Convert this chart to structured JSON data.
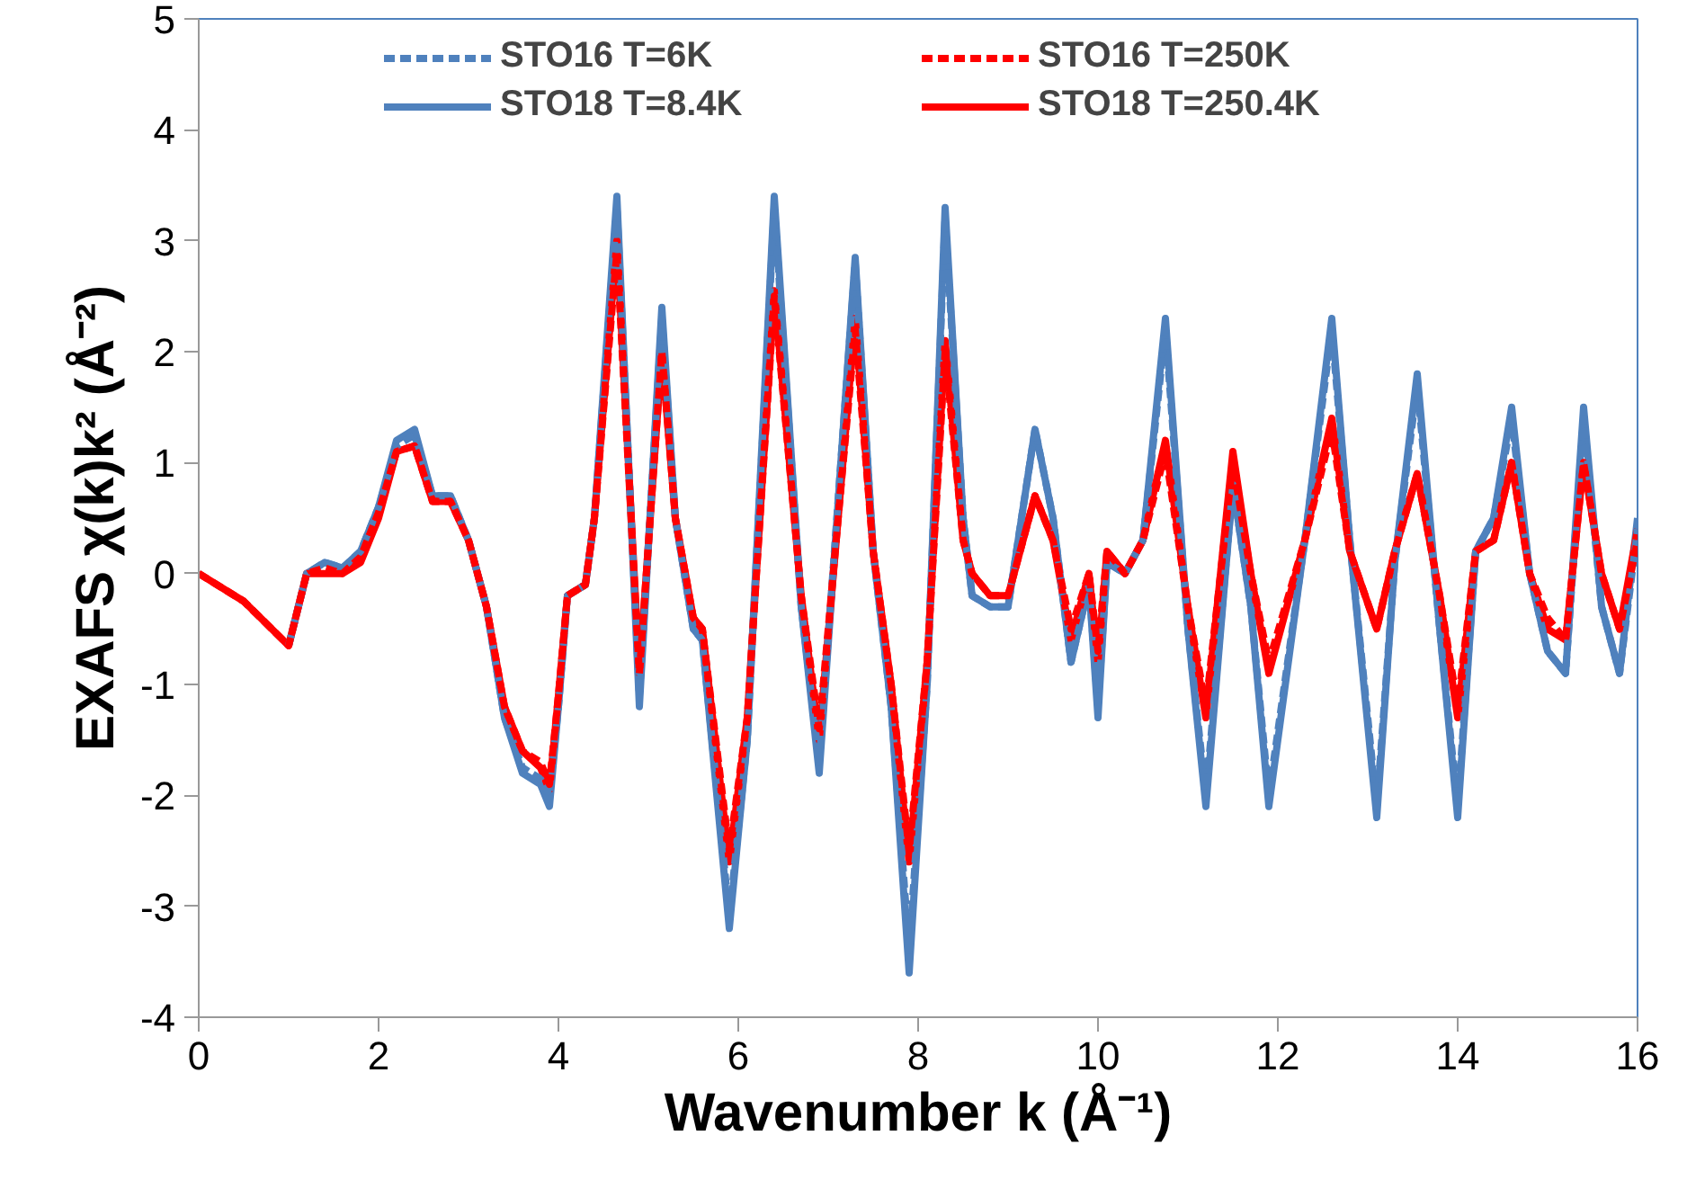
{
  "chart_data": {
    "type": "line",
    "xlabel": "Wavenumber k (Å⁻¹)",
    "ylabel": "EXAFS χ(k)k² (Å⁻²)",
    "x": [
      0,
      0.5,
      1.0,
      1.2,
      1.4,
      1.6,
      1.8,
      2.0,
      2.2,
      2.4,
      2.6,
      2.8,
      3.0,
      3.2,
      3.4,
      3.6,
      3.8,
      3.9,
      4.0,
      4.1,
      4.3,
      4.4,
      4.65,
      4.9,
      5.15,
      5.3,
      5.5,
      5.6,
      5.9,
      6.1,
      6.4,
      6.7,
      6.9,
      7.3,
      7.5,
      7.7,
      7.9,
      8.1,
      8.3,
      8.5,
      8.6,
      8.8,
      9.0,
      9.3,
      9.5,
      9.7,
      9.9,
      10.0,
      10.1,
      10.3,
      10.5,
      10.75,
      11.0,
      11.2,
      11.5,
      11.7,
      11.9,
      12.3,
      12.6,
      12.8,
      13.1,
      13.3,
      13.55,
      13.8,
      14.0,
      14.2,
      14.4,
      14.6,
      14.8,
      15.0,
      15.2,
      15.4,
      15.6,
      15.8,
      16.0
    ],
    "series": [
      {
        "name": "STO16 T=6K",
        "color": "#4f81bd",
        "line_style": "dashed",
        "values": [
          null,
          null,
          -0.65,
          0,
          0.1,
          0.05,
          0.2,
          0.6,
          1.15,
          1.25,
          0.7,
          0.7,
          0.3,
          -0.3,
          -1.3,
          -1.75,
          -1.85,
          -2.0,
          -1.2,
          -0.2,
          -0.1,
          0.5,
          3.3,
          -1.1,
          2.3,
          0.5,
          -0.5,
          -0.6,
          -3.1,
          -1.5,
          3.3,
          -0.3,
          -1.7,
          2.8,
          0.2,
          -1.2,
          -3.4,
          -1.0,
          3.2,
          0.5,
          -0.2,
          -0.3,
          -0.3,
          1.3,
          0.5,
          -0.8,
          -0.1,
          -1.2,
          0.1,
          0,
          0.3,
          2.2,
          -0.5,
          -2.0,
          0.8,
          -0.3,
          -2.0,
          0.3,
          2.2,
          0.3,
          -2.1,
          0.1,
          1.7,
          -0.5,
          -2.1,
          0.2,
          0.5,
          1.4,
          0,
          -0.7,
          -0.9,
          1.4,
          -0.3,
          -0.9,
          0.4
        ]
      },
      {
        "name": "STO16 T=250K",
        "color": "#ff0000",
        "line_style": "dashed",
        "values": [
          0,
          -0.25,
          -0.65,
          0,
          0.05,
          0,
          0.15,
          0.55,
          1.1,
          1.15,
          0.65,
          0.65,
          0.3,
          -0.3,
          -1.2,
          -1.6,
          -1.7,
          -1.9,
          -1.1,
          -0.2,
          -0.1,
          0.5,
          2.9,
          -0.9,
          2.0,
          0.5,
          -0.4,
          -0.5,
          -2.5,
          -1.3,
          2.5,
          -0.2,
          -1.4,
          2.2,
          0.2,
          -1.0,
          -2.5,
          -0.8,
          2.0,
          0.3,
          0,
          -0.2,
          -0.2,
          0.7,
          0.3,
          -0.5,
          0,
          -0.7,
          0.2,
          0,
          0.3,
          1.1,
          -0.3,
          -1.2,
          1.0,
          0,
          -0.8,
          0.3,
          1.3,
          0.2,
          -0.5,
          0.2,
          0.9,
          -0.2,
          -1.2,
          0.2,
          0.3,
          1.0,
          0,
          -0.4,
          -0.6,
          1.0,
          0,
          -0.5,
          0.3
        ]
      },
      {
        "name": "STO18 T=8.4K",
        "color": "#4f81bd",
        "line_style": "solid",
        "values": [
          null,
          null,
          -0.65,
          0,
          0.1,
          0.05,
          0.2,
          0.6,
          1.2,
          1.3,
          0.7,
          0.7,
          0.3,
          -0.3,
          -1.3,
          -1.8,
          -1.9,
          -2.1,
          -1.2,
          -0.2,
          -0.1,
          0.5,
          3.4,
          -1.2,
          2.4,
          0.5,
          -0.5,
          -0.6,
          -3.2,
          -1.5,
          3.4,
          -0.3,
          -1.8,
          2.85,
          0.2,
          -1.2,
          -3.6,
          -1.0,
          3.3,
          0.5,
          -0.2,
          -0.3,
          -0.3,
          1.3,
          0.5,
          -0.8,
          -0.1,
          -1.3,
          0.1,
          0,
          0.3,
          2.3,
          -0.5,
          -2.1,
          0.8,
          -0.3,
          -2.1,
          0.3,
          2.3,
          0.3,
          -2.2,
          0.1,
          1.8,
          -0.5,
          -2.2,
          0.2,
          0.5,
          1.5,
          0,
          -0.7,
          -0.9,
          1.5,
          -0.3,
          -0.9,
          0.5
        ]
      },
      {
        "name": "STO18 T=250.4K",
        "color": "#ff0000",
        "line_style": "solid",
        "values": [
          0,
          -0.25,
          -0.65,
          0,
          0,
          0,
          0.1,
          0.5,
          1.1,
          1.15,
          0.65,
          0.65,
          0.3,
          -0.3,
          -1.2,
          -1.6,
          -1.75,
          -1.95,
          -1.1,
          -0.2,
          -0.1,
          0.5,
          3.0,
          -0.9,
          2.0,
          0.5,
          -0.4,
          -0.5,
          -2.6,
          -1.3,
          2.55,
          -0.2,
          -1.5,
          2.3,
          0.2,
          -1.0,
          -2.6,
          -0.8,
          2.1,
          0.3,
          0,
          -0.2,
          -0.2,
          0.7,
          0.3,
          -0.6,
          0,
          -0.8,
          0.2,
          0,
          0.3,
          1.2,
          -0.3,
          -1.3,
          1.1,
          0,
          -0.9,
          0.3,
          1.4,
          0.2,
          -0.5,
          0.2,
          0.9,
          -0.2,
          -1.3,
          0.2,
          0.3,
          1.0,
          0,
          -0.5,
          -0.6,
          1.0,
          0,
          -0.5,
          0.4
        ]
      }
    ],
    "xlim": [
      0,
      16
    ],
    "ylim": [
      -4,
      5
    ],
    "xticks": [
      0,
      2,
      4,
      6,
      8,
      10,
      12,
      14,
      16
    ],
    "yticks": [
      -4,
      -3,
      -2,
      -1,
      0,
      1,
      2,
      3,
      4,
      5
    ],
    "legend": "top",
    "grid": false,
    "marker": "none"
  }
}
